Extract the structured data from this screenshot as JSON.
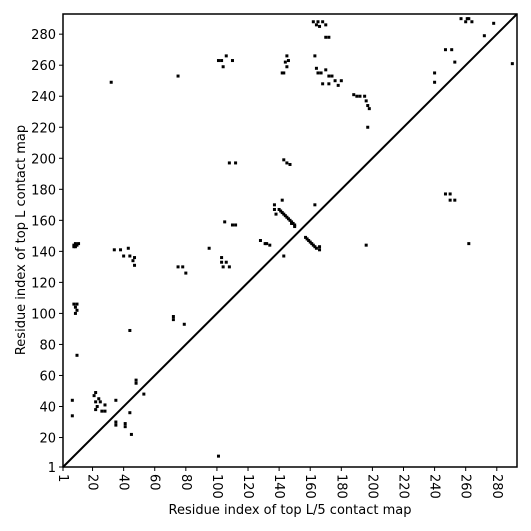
{
  "chart_data": {
    "type": "scatter",
    "xlabel": "Residue index of top L/5 contact map",
    "ylabel": "Residue index of top L contact map",
    "xlim": [
      1,
      293
    ],
    "ylim": [
      1,
      293
    ],
    "xticks": [
      1,
      20,
      40,
      60,
      80,
      100,
      120,
      140,
      160,
      180,
      200,
      220,
      240,
      260,
      280
    ],
    "yticks": [
      1,
      20,
      40,
      60,
      80,
      100,
      120,
      140,
      160,
      180,
      200,
      220,
      240,
      260,
      280
    ],
    "color": "#000000",
    "x": [
      8,
      9,
      10,
      11,
      8,
      9,
      8,
      10,
      9,
      10,
      9,
      10,
      7,
      7,
      22,
      21,
      24,
      22,
      25,
      23,
      22,
      26,
      28,
      28,
      35,
      35,
      41,
      41,
      44,
      45,
      48,
      48,
      53,
      35,
      32,
      34,
      38,
      40,
      44,
      46,
      47,
      47,
      43,
      44,
      72,
      72,
      75,
      78,
      80,
      79,
      75,
      95,
      103,
      103,
      104,
      106,
      108,
      110,
      112,
      105,
      108,
      112,
      103,
      104,
      106,
      110,
      101,
      128,
      131,
      134,
      132,
      137,
      137,
      140,
      142,
      138,
      142,
      143,
      144,
      145,
      146,
      145,
      141,
      142,
      143,
      144,
      145,
      146,
      147,
      148,
      149,
      150,
      150,
      148,
      143,
      145,
      147,
      143,
      157,
      158,
      159,
      160,
      161,
      162,
      163,
      164,
      166,
      166,
      163,
      162,
      164,
      165,
      166,
      168,
      170,
      170,
      172,
      163,
      164,
      165,
      167,
      170,
      172,
      174,
      176,
      178,
      180,
      172,
      168,
      188,
      190,
      192,
      195,
      196,
      197,
      198,
      197,
      196,
      240,
      240,
      247,
      251,
      253,
      257,
      260,
      262,
      264,
      261,
      272,
      278,
      290,
      247,
      250,
      250,
      253,
      262,
      101
    ],
    "y": [
      143,
      143,
      144,
      145,
      144,
      145,
      106,
      106,
      104,
      102,
      100,
      73,
      44,
      34,
      49,
      47,
      45,
      43,
      43,
      40,
      38,
      37,
      37,
      41,
      30,
      28,
      29,
      27,
      36,
      22,
      57,
      55,
      48,
      44,
      249,
      141,
      141,
      137,
      137,
      134,
      131,
      136,
      142,
      89,
      98,
      96,
      130,
      130,
      126,
      93,
      253,
      142,
      136,
      133,
      130,
      133,
      130,
      157,
      157,
      159,
      197,
      197,
      263,
      259,
      266,
      263,
      263,
      147,
      145,
      144,
      145,
      170,
      167,
      167,
      173,
      164,
      255,
      255,
      262,
      259,
      263,
      266,
      166,
      165,
      164,
      163,
      162,
      161,
      160,
      159,
      158,
      157,
      156,
      158,
      199,
      197,
      196,
      137,
      149,
      148,
      147,
      146,
      145,
      144,
      143,
      142,
      141,
      143,
      170,
      288,
      286,
      288,
      285,
      288,
      286,
      278,
      278,
      266,
      258,
      255,
      255,
      257,
      253,
      253,
      250,
      247,
      250,
      248,
      248,
      241,
      240,
      240,
      240,
      237,
      234,
      232,
      220,
      144,
      255,
      249,
      270,
      270,
      262,
      290,
      288,
      290,
      288,
      290,
      279,
      287,
      261,
      177,
      177,
      173,
      173,
      145,
      8
    ]
  }
}
